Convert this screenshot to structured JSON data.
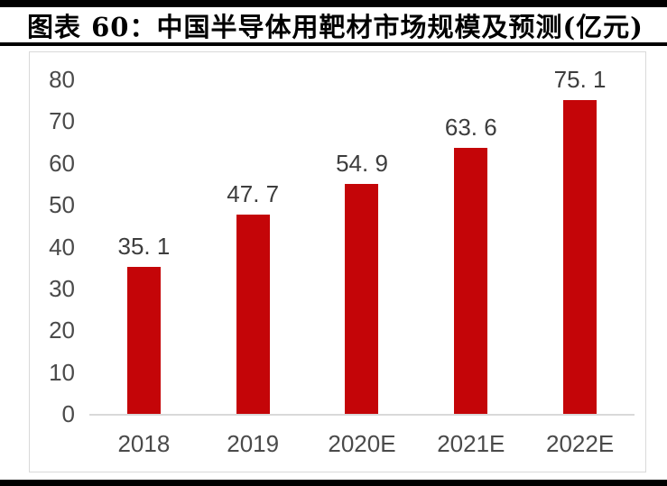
{
  "header": {
    "title": "图表 60：中国半导体用靶材市场规模及预测(亿元)"
  },
  "colors": {
    "bar": "#C40508",
    "axis_text": "#4a4a4a",
    "value_label_text": "#3d3d3d",
    "axis_line": "#d9d9d9",
    "frame_border": "#d9d9d9",
    "rule": "#000000",
    "title_text": "#000000",
    "background": "#ffffff"
  },
  "chart_data": {
    "type": "bar",
    "title": "中国半导体用靶材市场规模及预测(亿元)",
    "categories": [
      "2018",
      "2019",
      "2020E",
      "2021E",
      "2022E"
    ],
    "values": [
      35.1,
      47.7,
      54.9,
      63.6,
      75.1
    ],
    "data_labels": [
      "35. 1",
      "47. 7",
      "54. 9",
      "63. 6",
      "75. 1"
    ],
    "xlabel": "",
    "ylabel": "",
    "ylim": [
      0,
      80
    ],
    "yticks": [
      0,
      10,
      20,
      30,
      40,
      50,
      60,
      70,
      80
    ],
    "grid": "off",
    "legend": "none",
    "bar_color": "#C40508"
  }
}
